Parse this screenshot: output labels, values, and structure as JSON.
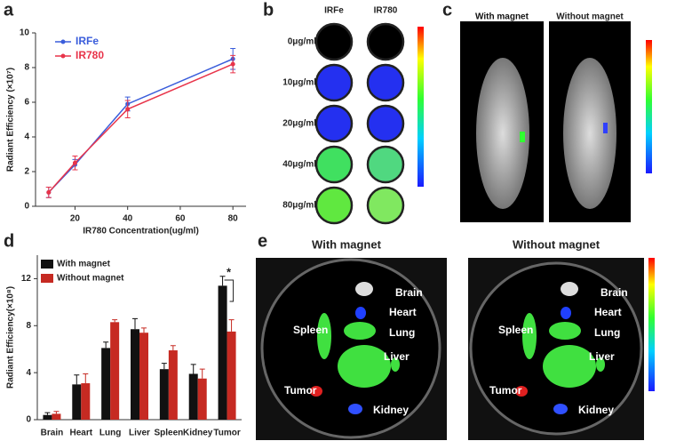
{
  "chart_data": [
    {
      "type": "line",
      "label": "a",
      "y_label": "Radiant Efficiency (×10⁷)",
      "x_label": "IR780 Concentration(ug/ml)",
      "x": [
        10,
        20,
        40,
        80
      ],
      "xlim": [
        5,
        85
      ],
      "xticks": [
        20,
        40,
        60,
        80
      ],
      "ylim": [
        0,
        10
      ],
      "yticks": [
        0,
        2,
        4,
        6,
        8,
        10
      ],
      "legend": "upper-left",
      "series": [
        {
          "name": "IRFe",
          "color": "#3a5ddb",
          "values": [
            0.8,
            2.4,
            5.9,
            8.5
          ],
          "errors": [
            0.3,
            0.3,
            0.4,
            0.6
          ]
        },
        {
          "name": "IR780",
          "color": "#e8344a",
          "values": [
            0.8,
            2.5,
            5.6,
            8.2
          ],
          "errors": [
            0.3,
            0.4,
            0.5,
            0.5
          ]
        }
      ]
    },
    {
      "type": "bar",
      "label": "d",
      "y_label": "Radiant Efficiency(×10⁸)",
      "categories": [
        "Brain",
        "Heart",
        "Lung",
        "Liver",
        "Spleen",
        "Kidney",
        "Tumor"
      ],
      "ylim": [
        0,
        14
      ],
      "yticks": [
        0,
        4,
        8,
        12
      ],
      "legend": "upper-left",
      "annotation": "*",
      "series": [
        {
          "name": "With magnet",
          "color": "#111111",
          "values": [
            0.4,
            3.0,
            6.1,
            7.7,
            4.3,
            3.9,
            11.4
          ],
          "errors": [
            0.2,
            0.8,
            0.5,
            0.9,
            0.5,
            0.8,
            0.8
          ]
        },
        {
          "name": "Without magnet",
          "color": "#c62a22",
          "values": [
            0.5,
            3.1,
            8.3,
            7.4,
            5.9,
            3.5,
            7.5
          ],
          "errors": [
            0.2,
            0.8,
            0.2,
            0.4,
            0.4,
            0.8,
            1.0
          ]
        }
      ]
    }
  ],
  "panel_b": {
    "label": "b",
    "columns": [
      "IRFe",
      "IR780"
    ],
    "rows": [
      "0μg/ml",
      "10μg/ml",
      "20μg/ml",
      "40μg/ml",
      "80μg/ml"
    ]
  },
  "panel_c": {
    "label": "c",
    "columns": [
      "With magnet",
      "Without magnet"
    ]
  },
  "panel_e": {
    "label": "e",
    "columns": [
      "With magnet",
      "Without magnet"
    ],
    "organs": [
      "Brain",
      "Heart",
      "Lung",
      "Liver",
      "Spleen",
      "Tumor",
      "Kidney"
    ]
  }
}
